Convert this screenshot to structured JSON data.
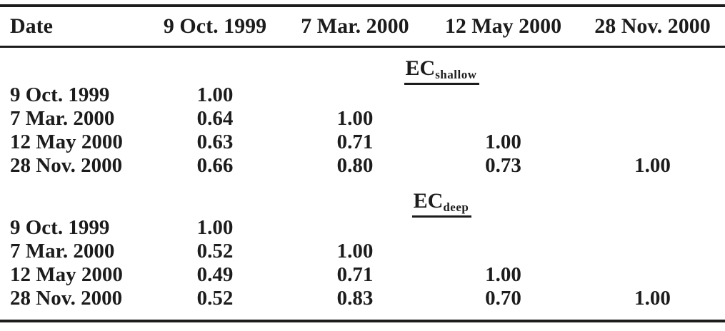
{
  "page": {
    "background": "#ffffff",
    "text_color": "#1c1c1c"
  },
  "table": {
    "columns": [
      "Date",
      "9 Oct. 1999",
      "7 Mar. 2000",
      "12 May 2000",
      "28 Nov. 2000"
    ],
    "sections": [
      {
        "label_main": "EC",
        "label_sub": "shallow",
        "rows": [
          {
            "date": "9 Oct. 1999",
            "values": [
              "1.00",
              "",
              "",
              ""
            ]
          },
          {
            "date": "7 Mar. 2000",
            "values": [
              "0.64",
              "1.00",
              "",
              ""
            ]
          },
          {
            "date": "12 May 2000",
            "values": [
              "0.63",
              "0.71",
              "1.00",
              ""
            ]
          },
          {
            "date": "28 Nov. 2000",
            "values": [
              "0.66",
              "0.80",
              "0.73",
              "1.00"
            ]
          }
        ]
      },
      {
        "label_main": "EC",
        "label_sub": "deep",
        "rows": [
          {
            "date": "9 Oct. 1999",
            "values": [
              "1.00",
              "",
              "",
              ""
            ]
          },
          {
            "date": "7 Mar. 2000",
            "values": [
              "0.52",
              "1.00",
              "",
              ""
            ]
          },
          {
            "date": "12 May 2000",
            "values": [
              "0.49",
              "0.71",
              "1.00",
              ""
            ]
          },
          {
            "date": "28 Nov. 2000",
            "values": [
              "0.52",
              "0.83",
              "0.70",
              "1.00"
            ]
          }
        ]
      }
    ]
  }
}
